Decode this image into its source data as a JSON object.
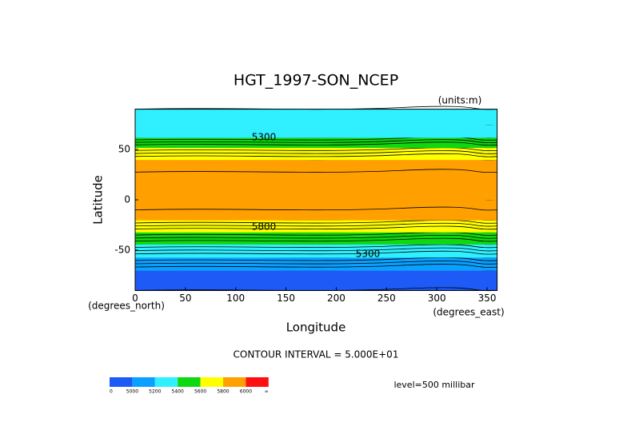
{
  "chart_data": {
    "type": "zonal-contour",
    "title": "HGT_1997-SON_NCEP",
    "units": "(units:m)",
    "x_label": "Longitude",
    "y_label": "Latitude",
    "x_unit_label": "(degrees_east)",
    "y_unit_label": "(degrees_north)",
    "contour_interval_text": "CONTOUR INTERVAL = 5.000E+01",
    "contour_interval": 50,
    "level_text": "level=500 millibar",
    "xlim": [
      0,
      360
    ],
    "ylim": [
      -90,
      90
    ],
    "xticks": [
      0,
      50,
      100,
      150,
      200,
      250,
      300,
      350
    ],
    "yticks": [
      -50,
      0,
      50
    ],
    "latitude": [
      -90,
      -70,
      -57,
      -44,
      -32,
      -20,
      0,
      20,
      40,
      52,
      62,
      75,
      90
    ],
    "height": [
      4950,
      5000,
      5200,
      5400,
      5600,
      5800,
      5900,
      5880,
      5800,
      5600,
      5400,
      5350,
      5300
    ],
    "contour_labels": [
      "5300",
      "5800",
      "5300"
    ],
    "colorbar": {
      "colors": [
        "#1e5af5",
        "#0aa0ff",
        "#30f0ff",
        "#10d810",
        "#ffff00",
        "#ffa000",
        "#ff1010"
      ],
      "levels": [
        0,
        5000,
        5200,
        5400,
        5600,
        5800,
        6000
      ],
      "end_label": "∞"
    }
  }
}
